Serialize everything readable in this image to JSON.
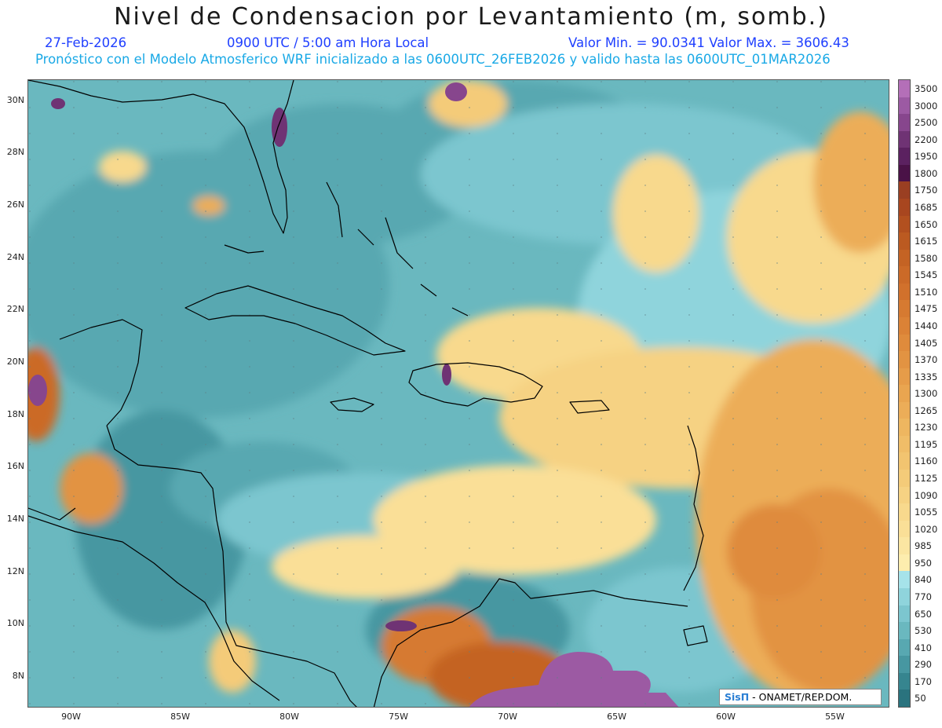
{
  "header": {
    "title": "Nivel de Condensacion por Levantamiento (m, somb.)",
    "date": "27-Feb-2026",
    "time": "0900 UTC / 5:00 am Hora Local",
    "stats": "Valor Min. = 90.0341   Valor Max. = 3606.43",
    "forecast_note": "Pronóstico con el Modelo Atmosferico WRF inicializado a las 0600UTC_26FEB2026 y valido hasta las  0600UTC_01MAR2026"
  },
  "map": {
    "lat_labels": [
      "30N",
      "28N",
      "26N",
      "24N",
      "22N",
      "20N",
      "18N",
      "16N",
      "14N",
      "12N",
      "10N",
      "8N"
    ],
    "lon_labels": [
      "90W",
      "85W",
      "80W",
      "75W",
      "70W",
      "65W",
      "60W",
      "55W"
    ],
    "lon_range": [
      -92,
      -52.5
    ],
    "lat_range": [
      6.8,
      30.8
    ],
    "land_outline_color": "#000000",
    "base_color": "#6ab8bf"
  },
  "colorbar": {
    "labels": [
      "3500",
      "3000",
      "2500",
      "2200",
      "1950",
      "1800",
      "1750",
      "1685",
      "1650",
      "1615",
      "1580",
      "1545",
      "1510",
      "1475",
      "1440",
      "1405",
      "1370",
      "1335",
      "1300",
      "1265",
      "1230",
      "1195",
      "1160",
      "1125",
      "1090",
      "1055",
      "1020",
      "985",
      "950",
      "840",
      "770",
      "650",
      "530",
      "410",
      "290",
      "170",
      "50"
    ],
    "colors": [
      "#b46fb8",
      "#9c5aa3",
      "#87468d",
      "#6f3374",
      "#5b2160",
      "#4a1247",
      "#9a3f22",
      "#a8461f",
      "#b2501f",
      "#bb5a21",
      "#c46324",
      "#cb6a28",
      "#d1712c",
      "#d67a31",
      "#db8236",
      "#df8b3c",
      "#e29342",
      "#e69c49",
      "#e9a550",
      "#ecad58",
      "#eeb660",
      "#f0bd68",
      "#f2c470",
      "#f4cb79",
      "#f6d283",
      "#f8d98d",
      "#fadf97",
      "#fbe6a2",
      "#fdedae",
      "#a6e3ea",
      "#8fd4dc",
      "#7cc6cf",
      "#6ab8bf",
      "#58a8b1",
      "#4797a1",
      "#36858f",
      "#2a737e"
    ]
  },
  "credit": {
    "logo": "SisΠ",
    "text": " - ONAMET/REP.DOM."
  }
}
